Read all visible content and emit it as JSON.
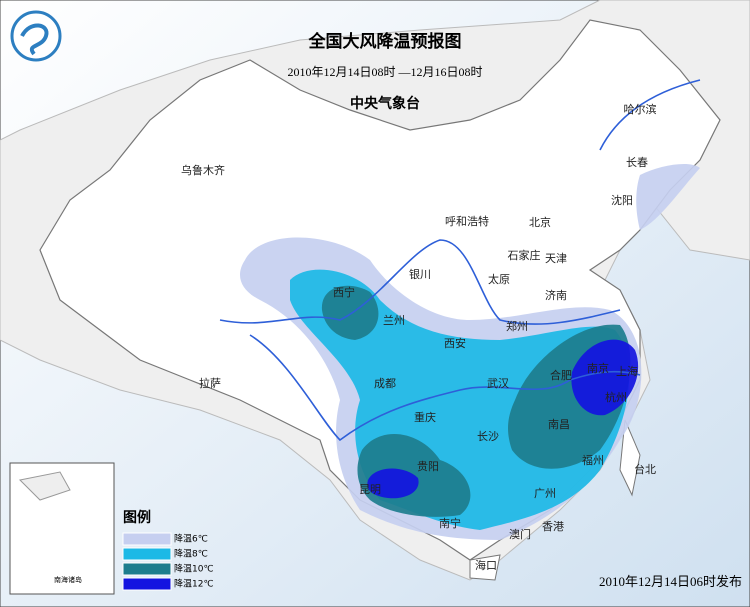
{
  "header": {
    "title": "全国大风降温预报图",
    "period": "2010年12月14日08时 —12月16日08时",
    "issuer": "中央气象台"
  },
  "cities": [
    "乌鲁木齐",
    "哈尔滨",
    "长春",
    "沈阳",
    "呼和浩特",
    "北京",
    "石家庄",
    "天津",
    "银川",
    "太原",
    "西宁",
    "兰州",
    "济南",
    "郑州",
    "西安",
    "合肥",
    "南京",
    "上海",
    "拉萨",
    "成都",
    "武汉",
    "杭州",
    "重庆",
    "南昌",
    "长沙",
    "贵阳",
    "福州",
    "昆明",
    "台北",
    "广州",
    "南宁",
    "香港",
    "澳门",
    "海口"
  ],
  "legend": {
    "title": "图例",
    "items": [
      {
        "label": "降温6℃",
        "color": "#c6cff0"
      },
      {
        "label": "降温8℃",
        "color": "#1cb9e6"
      },
      {
        "label": "降温10℃",
        "color": "#1d7d8e"
      },
      {
        "label": "降温12℃",
        "color": "#1414e0"
      }
    ]
  },
  "inset": {
    "label": "南海诸岛"
  },
  "footer": {
    "issued": "2010年12月14日06时发布"
  }
}
